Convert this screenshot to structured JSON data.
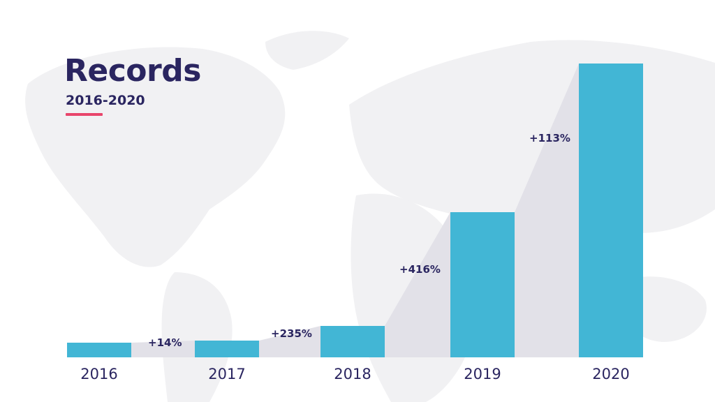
{
  "header": {
    "title": "Records",
    "subtitle": "2016-2020"
  },
  "colors": {
    "bar": "#42b6d5",
    "connector": "#e2e1e8",
    "text": "#2a2560",
    "accent": "#e8456b",
    "map": "#f2f2f4"
  },
  "growth_labels": [
    "+14%",
    "+235%",
    "+416%",
    "+113%"
  ],
  "chart_data": {
    "type": "bar",
    "title": "Records",
    "subtitle": "2016-2020",
    "categories": [
      "2016",
      "2017",
      "2018",
      "2019",
      "2020"
    ],
    "values": [
      21,
      24,
      45,
      208,
      421
    ],
    "value_note": "relative bar heights in px (no axis shown)",
    "annotations": [
      {
        "between": [
          "2016",
          "2017"
        ],
        "text": "+14%"
      },
      {
        "between": [
          "2017",
          "2018"
        ],
        "text": "+235%"
      },
      {
        "between": [
          "2018",
          "2019"
        ],
        "text": "+416%"
      },
      {
        "between": [
          "2019",
          "2020"
        ],
        "text": "+113%"
      }
    ],
    "xlabel": "",
    "ylabel": "",
    "grid": false,
    "legend": "none"
  }
}
